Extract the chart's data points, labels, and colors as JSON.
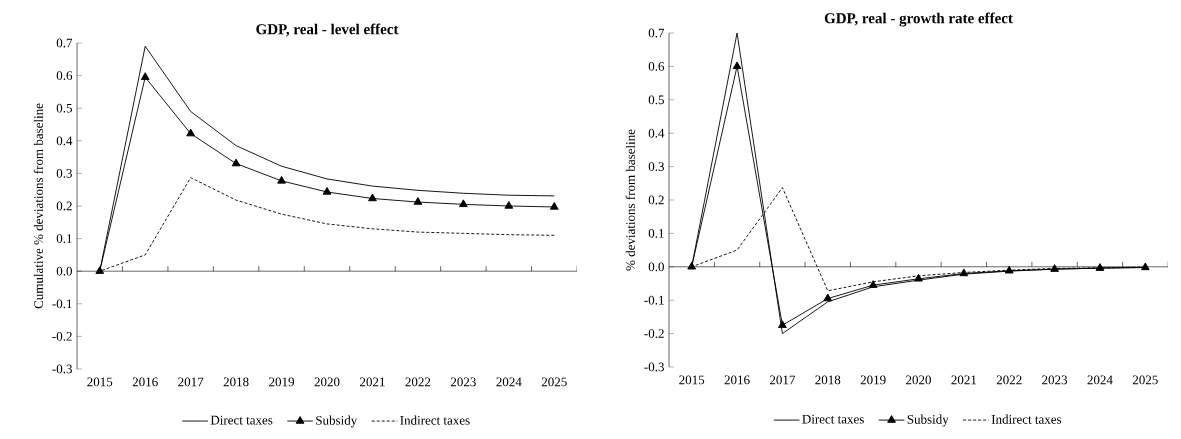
{
  "chart_data": [
    {
      "type": "line",
      "title": "GDP, real - level effect",
      "ylabel": "Cumulative % deviations from baseline",
      "categories": [
        "2015",
        "2016",
        "2017",
        "2018",
        "2019",
        "2020",
        "2021",
        "2022",
        "2023",
        "2024",
        "2025"
      ],
      "series": [
        {
          "name": "Direct taxes",
          "color": "#000000",
          "line_style": "solid",
          "marker": "none",
          "values": [
            0,
            0.69,
            0.49,
            0.385,
            0.322,
            0.283,
            0.261,
            0.248,
            0.239,
            0.233,
            0.231
          ]
        },
        {
          "name": "Subsidy",
          "color": "#000000",
          "line_style": "solid",
          "marker": "triangle",
          "values": [
            0,
            0.595,
            0.422,
            0.33,
            0.277,
            0.243,
            0.223,
            0.212,
            0.205,
            0.2,
            0.197
          ]
        },
        {
          "name": "Indirect taxes",
          "color": "#000000",
          "line_style": "dashed",
          "marker": "none",
          "values": [
            0,
            0.05,
            0.287,
            0.218,
            0.175,
            0.145,
            0.13,
            0.12,
            0.116,
            0.112,
            0.11
          ]
        }
      ],
      "ylim": [
        -0.3,
        0.7
      ],
      "yticks": [
        -0.3,
        -0.2,
        -0.1,
        {
          "value": 0,
          "label": "0.0"
        },
        0.1,
        0.2,
        0.3,
        0.4,
        0.5,
        0.6,
        0.7
      ],
      "legend": "bottom"
    },
    {
      "type": "line",
      "title": "GDP, real - growth rate effect",
      "ylabel": "% deviations from baseline",
      "categories": [
        "2015",
        "2016",
        "2017",
        "2018",
        "2019",
        "2020",
        "2021",
        "2022",
        "2023",
        "2024",
        "2025"
      ],
      "series": [
        {
          "name": "Direct taxes",
          "color": "#000000",
          "line_style": "solid",
          "marker": "none",
          "values": [
            0,
            0.7,
            -0.2,
            -0.105,
            -0.06,
            -0.04,
            -0.022,
            -0.013,
            -0.007,
            -0.004,
            -0.002
          ]
        },
        {
          "name": "Subsidy",
          "color": "#000000",
          "line_style": "solid",
          "marker": "triangle",
          "values": [
            0,
            0.6,
            -0.175,
            -0.095,
            -0.055,
            -0.036,
            -0.02,
            -0.012,
            -0.007,
            -0.004,
            -0.002
          ]
        },
        {
          "name": "Indirect taxes",
          "color": "#000000",
          "line_style": "dashed",
          "marker": "none",
          "values": [
            0,
            0.05,
            0.237,
            -0.072,
            -0.045,
            -0.027,
            -0.017,
            -0.01,
            -0.005,
            -0.003,
            -0.001
          ]
        }
      ],
      "ylim": [
        -0.3,
        0.7
      ],
      "yticks": [
        -0.3,
        -0.2,
        -0.1,
        {
          "value": 0,
          "label": "0.0"
        },
        0.1,
        0.2,
        0.3,
        0.4,
        0.5,
        0.6,
        0.7
      ],
      "legend": "bottom"
    }
  ]
}
